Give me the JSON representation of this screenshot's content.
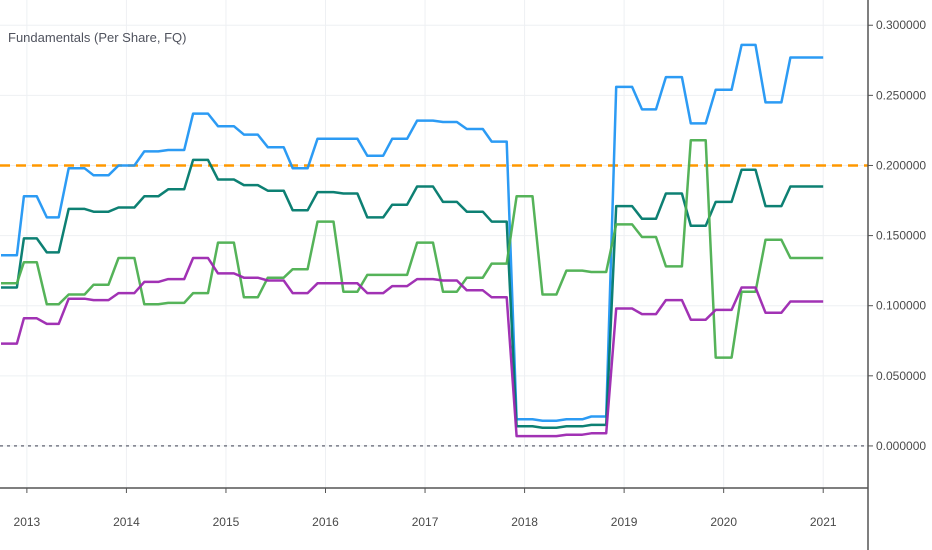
{
  "indicator": {
    "title": "Fundamentals (Per Share, FQ)"
  },
  "colors": {
    "blue": "#2196f3",
    "teal": "#00796b",
    "green": "#4caf50",
    "purple": "#9c27b0",
    "orange_hline": "#ff9800",
    "zero_hline": "#787b86",
    "grid": "#eef0f3",
    "axis_line": "#555555"
  },
  "chart_data": {
    "type": "line",
    "title": "Fundamentals (Per Share, FQ)",
    "xlabel": "",
    "ylabel": "",
    "xlim": [
      2012.73,
      2021.45
    ],
    "ylim": [
      -0.03,
      0.318
    ],
    "x_ticks": [
      2013,
      2014,
      2015,
      2016,
      2017,
      2018,
      2019,
      2020,
      2021
    ],
    "x_tick_labels": [
      "2013",
      "2014",
      "2015",
      "2016",
      "2017",
      "2018",
      "2019",
      "2020",
      "2021"
    ],
    "y_ticks": [
      0.0,
      0.05,
      0.1,
      0.15,
      0.2,
      0.25,
      0.3
    ],
    "y_tick_labels": [
      "0.000000",
      "0.050000",
      "0.100000",
      "0.150000",
      "0.200000",
      "0.250000",
      "0.300000"
    ],
    "grid": true,
    "legend": "none",
    "horizontal_lines": [
      {
        "value": 0.2,
        "color": "#ff9800",
        "style": "dashed"
      },
      {
        "value": 0.0,
        "color": "#787b86",
        "style": "dotted"
      }
    ],
    "series": [
      {
        "color": "#2196f3",
        "points": [
          [
            2012.74,
            0.136
          ],
          [
            2012.9,
            0.136
          ],
          [
            2012.97,
            0.178
          ],
          [
            2013.1,
            0.178
          ],
          [
            2013.2,
            0.163
          ],
          [
            2013.32,
            0.163
          ],
          [
            2013.42,
            0.198
          ],
          [
            2013.58,
            0.198
          ],
          [
            2013.67,
            0.193
          ],
          [
            2013.82,
            0.193
          ],
          [
            2013.92,
            0.2
          ],
          [
            2014.08,
            0.2
          ],
          [
            2014.18,
            0.21
          ],
          [
            2014.32,
            0.21
          ],
          [
            2014.42,
            0.211
          ],
          [
            2014.58,
            0.211
          ],
          [
            2014.67,
            0.237
          ],
          [
            2014.82,
            0.237
          ],
          [
            2014.92,
            0.228
          ],
          [
            2015.08,
            0.228
          ],
          [
            2015.18,
            0.222
          ],
          [
            2015.32,
            0.222
          ],
          [
            2015.42,
            0.213
          ],
          [
            2015.58,
            0.213
          ],
          [
            2015.67,
            0.198
          ],
          [
            2015.82,
            0.198
          ],
          [
            2015.92,
            0.219
          ],
          [
            2016.08,
            0.219
          ],
          [
            2016.18,
            0.219
          ],
          [
            2016.32,
            0.219
          ],
          [
            2016.42,
            0.207
          ],
          [
            2016.58,
            0.207
          ],
          [
            2016.67,
            0.219
          ],
          [
            2016.82,
            0.219
          ],
          [
            2016.92,
            0.232
          ],
          [
            2017.08,
            0.232
          ],
          [
            2017.18,
            0.231
          ],
          [
            2017.32,
            0.231
          ],
          [
            2017.42,
            0.226
          ],
          [
            2017.58,
            0.226
          ],
          [
            2017.67,
            0.217
          ],
          [
            2017.82,
            0.217
          ],
          [
            2017.92,
            0.019
          ],
          [
            2018.08,
            0.019
          ],
          [
            2018.18,
            0.018
          ],
          [
            2018.32,
            0.018
          ],
          [
            2018.42,
            0.019
          ],
          [
            2018.58,
            0.019
          ],
          [
            2018.67,
            0.021
          ],
          [
            2018.82,
            0.021
          ],
          [
            2018.92,
            0.256
          ],
          [
            2019.08,
            0.256
          ],
          [
            2019.18,
            0.24
          ],
          [
            2019.32,
            0.24
          ],
          [
            2019.42,
            0.263
          ],
          [
            2019.58,
            0.263
          ],
          [
            2019.67,
            0.23
          ],
          [
            2019.82,
            0.23
          ],
          [
            2019.92,
            0.254
          ],
          [
            2020.08,
            0.254
          ],
          [
            2020.18,
            0.286
          ],
          [
            2020.32,
            0.286
          ],
          [
            2020.42,
            0.245
          ],
          [
            2020.58,
            0.245
          ],
          [
            2020.67,
            0.277
          ],
          [
            2021.0,
            0.277
          ]
        ]
      },
      {
        "color": "#00796b",
        "points": [
          [
            2012.74,
            0.113
          ],
          [
            2012.9,
            0.113
          ],
          [
            2012.97,
            0.148
          ],
          [
            2013.1,
            0.148
          ],
          [
            2013.2,
            0.138
          ],
          [
            2013.32,
            0.138
          ],
          [
            2013.42,
            0.169
          ],
          [
            2013.58,
            0.169
          ],
          [
            2013.67,
            0.167
          ],
          [
            2013.82,
            0.167
          ],
          [
            2013.92,
            0.17
          ],
          [
            2014.08,
            0.17
          ],
          [
            2014.18,
            0.178
          ],
          [
            2014.32,
            0.178
          ],
          [
            2014.42,
            0.183
          ],
          [
            2014.58,
            0.183
          ],
          [
            2014.67,
            0.204
          ],
          [
            2014.82,
            0.204
          ],
          [
            2014.92,
            0.19
          ],
          [
            2015.08,
            0.19
          ],
          [
            2015.18,
            0.186
          ],
          [
            2015.32,
            0.186
          ],
          [
            2015.42,
            0.182
          ],
          [
            2015.58,
            0.182
          ],
          [
            2015.67,
            0.168
          ],
          [
            2015.82,
            0.168
          ],
          [
            2015.92,
            0.181
          ],
          [
            2016.08,
            0.181
          ],
          [
            2016.18,
            0.18
          ],
          [
            2016.32,
            0.18
          ],
          [
            2016.42,
            0.163
          ],
          [
            2016.58,
            0.163
          ],
          [
            2016.67,
            0.172
          ],
          [
            2016.82,
            0.172
          ],
          [
            2016.92,
            0.185
          ],
          [
            2017.08,
            0.185
          ],
          [
            2017.18,
            0.174
          ],
          [
            2017.32,
            0.174
          ],
          [
            2017.42,
            0.167
          ],
          [
            2017.58,
            0.167
          ],
          [
            2017.67,
            0.16
          ],
          [
            2017.82,
            0.16
          ],
          [
            2017.92,
            0.014
          ],
          [
            2018.08,
            0.014
          ],
          [
            2018.18,
            0.013
          ],
          [
            2018.32,
            0.013
          ],
          [
            2018.42,
            0.014
          ],
          [
            2018.58,
            0.014
          ],
          [
            2018.67,
            0.015
          ],
          [
            2018.82,
            0.015
          ],
          [
            2018.92,
            0.171
          ],
          [
            2019.08,
            0.171
          ],
          [
            2019.18,
            0.162
          ],
          [
            2019.32,
            0.162
          ],
          [
            2019.42,
            0.18
          ],
          [
            2019.58,
            0.18
          ],
          [
            2019.67,
            0.157
          ],
          [
            2019.82,
            0.157
          ],
          [
            2019.92,
            0.174
          ],
          [
            2020.08,
            0.174
          ],
          [
            2020.18,
            0.197
          ],
          [
            2020.32,
            0.197
          ],
          [
            2020.42,
            0.171
          ],
          [
            2020.58,
            0.171
          ],
          [
            2020.67,
            0.185
          ],
          [
            2021.0,
            0.185
          ]
        ]
      },
      {
        "color": "#4caf50",
        "points": [
          [
            2012.74,
            0.116
          ],
          [
            2012.9,
            0.116
          ],
          [
            2012.97,
            0.131
          ],
          [
            2013.1,
            0.131
          ],
          [
            2013.2,
            0.101
          ],
          [
            2013.32,
            0.101
          ],
          [
            2013.42,
            0.108
          ],
          [
            2013.58,
            0.108
          ],
          [
            2013.67,
            0.115
          ],
          [
            2013.82,
            0.115
          ],
          [
            2013.92,
            0.134
          ],
          [
            2014.08,
            0.134
          ],
          [
            2014.18,
            0.101
          ],
          [
            2014.32,
            0.101
          ],
          [
            2014.42,
            0.102
          ],
          [
            2014.58,
            0.102
          ],
          [
            2014.67,
            0.109
          ],
          [
            2014.82,
            0.109
          ],
          [
            2014.92,
            0.145
          ],
          [
            2015.08,
            0.145
          ],
          [
            2015.18,
            0.106
          ],
          [
            2015.32,
            0.106
          ],
          [
            2015.42,
            0.12
          ],
          [
            2015.58,
            0.12
          ],
          [
            2015.67,
            0.126
          ],
          [
            2015.82,
            0.126
          ],
          [
            2015.92,
            0.16
          ],
          [
            2016.08,
            0.16
          ],
          [
            2016.18,
            0.11
          ],
          [
            2016.32,
            0.11
          ],
          [
            2016.42,
            0.122
          ],
          [
            2016.58,
            0.122
          ],
          [
            2016.67,
            0.122
          ],
          [
            2016.82,
            0.122
          ],
          [
            2016.92,
            0.145
          ],
          [
            2017.08,
            0.145
          ],
          [
            2017.18,
            0.11
          ],
          [
            2017.32,
            0.11
          ],
          [
            2017.42,
            0.12
          ],
          [
            2017.58,
            0.12
          ],
          [
            2017.67,
            0.13
          ],
          [
            2017.82,
            0.13
          ],
          [
            2017.92,
            0.178
          ],
          [
            2018.08,
            0.178
          ],
          [
            2018.18,
            0.108
          ],
          [
            2018.32,
            0.108
          ],
          [
            2018.42,
            0.125
          ],
          [
            2018.58,
            0.125
          ],
          [
            2018.67,
            0.124
          ],
          [
            2018.82,
            0.124
          ],
          [
            2018.92,
            0.158
          ],
          [
            2019.08,
            0.158
          ],
          [
            2019.18,
            0.149
          ],
          [
            2019.32,
            0.149
          ],
          [
            2019.42,
            0.128
          ],
          [
            2019.58,
            0.128
          ],
          [
            2019.67,
            0.218
          ],
          [
            2019.82,
            0.218
          ],
          [
            2019.92,
            0.063
          ],
          [
            2020.08,
            0.063
          ],
          [
            2020.18,
            0.11
          ],
          [
            2020.32,
            0.11
          ],
          [
            2020.42,
            0.147
          ],
          [
            2020.58,
            0.147
          ],
          [
            2020.67,
            0.134
          ],
          [
            2021.0,
            0.134
          ]
        ]
      },
      {
        "color": "#9c27b0",
        "points": [
          [
            2012.74,
            0.073
          ],
          [
            2012.9,
            0.073
          ],
          [
            2012.97,
            0.091
          ],
          [
            2013.1,
            0.091
          ],
          [
            2013.2,
            0.087
          ],
          [
            2013.32,
            0.087
          ],
          [
            2013.42,
            0.105
          ],
          [
            2013.58,
            0.105
          ],
          [
            2013.67,
            0.104
          ],
          [
            2013.82,
            0.104
          ],
          [
            2013.92,
            0.109
          ],
          [
            2014.08,
            0.109
          ],
          [
            2014.18,
            0.117
          ],
          [
            2014.32,
            0.117
          ],
          [
            2014.42,
            0.119
          ],
          [
            2014.58,
            0.119
          ],
          [
            2014.67,
            0.134
          ],
          [
            2014.82,
            0.134
          ],
          [
            2014.92,
            0.123
          ],
          [
            2015.08,
            0.123
          ],
          [
            2015.18,
            0.12
          ],
          [
            2015.32,
            0.12
          ],
          [
            2015.42,
            0.118
          ],
          [
            2015.58,
            0.118
          ],
          [
            2015.67,
            0.109
          ],
          [
            2015.82,
            0.109
          ],
          [
            2015.92,
            0.116
          ],
          [
            2016.08,
            0.116
          ],
          [
            2016.18,
            0.116
          ],
          [
            2016.32,
            0.116
          ],
          [
            2016.42,
            0.109
          ],
          [
            2016.58,
            0.109
          ],
          [
            2016.67,
            0.114
          ],
          [
            2016.82,
            0.114
          ],
          [
            2016.92,
            0.119
          ],
          [
            2017.08,
            0.119
          ],
          [
            2017.18,
            0.118
          ],
          [
            2017.32,
            0.118
          ],
          [
            2017.42,
            0.111
          ],
          [
            2017.58,
            0.111
          ],
          [
            2017.67,
            0.106
          ],
          [
            2017.82,
            0.106
          ],
          [
            2017.92,
            0.007
          ],
          [
            2018.08,
            0.007
          ],
          [
            2018.18,
            0.007
          ],
          [
            2018.32,
            0.007
          ],
          [
            2018.42,
            0.008
          ],
          [
            2018.58,
            0.008
          ],
          [
            2018.67,
            0.009
          ],
          [
            2018.82,
            0.009
          ],
          [
            2018.92,
            0.098
          ],
          [
            2019.08,
            0.098
          ],
          [
            2019.18,
            0.094
          ],
          [
            2019.32,
            0.094
          ],
          [
            2019.42,
            0.104
          ],
          [
            2019.58,
            0.104
          ],
          [
            2019.67,
            0.09
          ],
          [
            2019.82,
            0.09
          ],
          [
            2019.92,
            0.097
          ],
          [
            2020.08,
            0.097
          ],
          [
            2020.18,
            0.113
          ],
          [
            2020.32,
            0.113
          ],
          [
            2020.42,
            0.095
          ],
          [
            2020.58,
            0.095
          ],
          [
            2020.67,
            0.103
          ],
          [
            2021.0,
            0.103
          ]
        ]
      }
    ]
  }
}
